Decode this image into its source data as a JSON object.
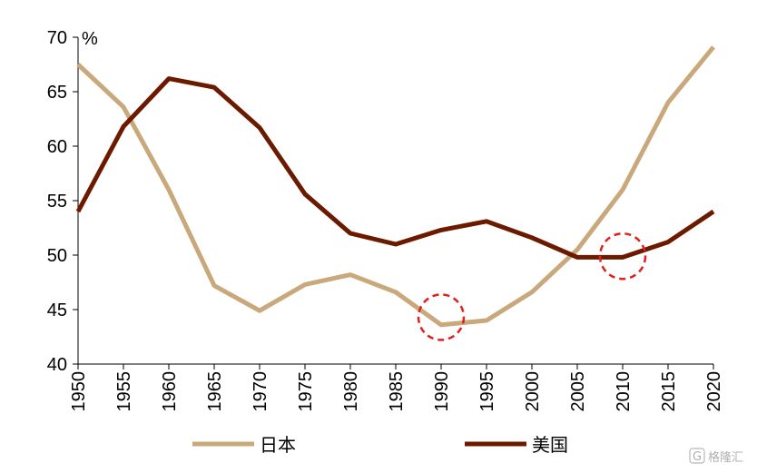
{
  "chart_data": {
    "type": "line",
    "ylabel": "%",
    "ylim": [
      40,
      70
    ],
    "yticks": [
      40,
      45,
      50,
      55,
      60,
      65,
      70
    ],
    "x": [
      "1950",
      "1955",
      "1960",
      "1965",
      "1970",
      "1975",
      "1980",
      "1985",
      "1990",
      "1995",
      "2000",
      "2005",
      "2010",
      "2015",
      "2020"
    ],
    "grid": false,
    "legend_position": "bottom",
    "series": [
      {
        "name": "日本",
        "color": "#c9a97c",
        "values": [
          67.5,
          63.6,
          56.0,
          47.2,
          44.9,
          47.3,
          48.2,
          46.6,
          43.6,
          44.0,
          46.6,
          50.5,
          56.0,
          64.0,
          69.1
        ]
      },
      {
        "name": "美国",
        "color": "#6b1a00",
        "values": [
          54.0,
          61.8,
          66.2,
          65.4,
          61.7,
          55.6,
          52.0,
          51.0,
          52.3,
          53.1,
          51.6,
          49.8,
          49.8,
          51.2,
          54.0
        ]
      }
    ],
    "annotations": [
      {
        "shape": "dashed-circle",
        "color": "#e0201c",
        "x": "1990",
        "y": 44.3
      },
      {
        "shape": "dashed-circle",
        "color": "#e0201c",
        "x": "2010",
        "y": 49.9
      }
    ]
  },
  "watermark": {
    "glyph": "G",
    "text": "格隆汇"
  }
}
